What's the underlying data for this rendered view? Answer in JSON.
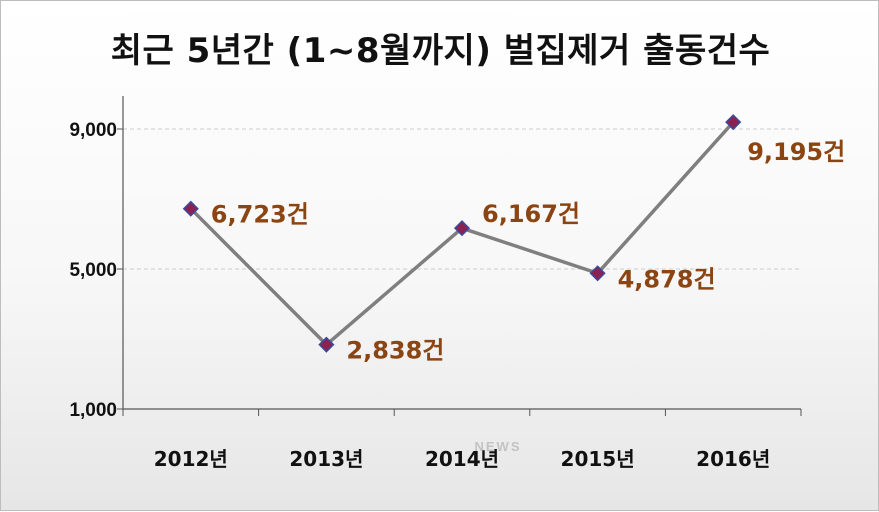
{
  "watermark": "NEWS",
  "chart_data": {
    "type": "line",
    "title": "최근 5년간 (1~8월까지) 벌집제거  출동건수",
    "xlabel": "",
    "ylabel": "",
    "categories": [
      "2012년",
      "2013년",
      "2014년",
      "2015년",
      "2016년"
    ],
    "series": [
      {
        "values": [
          6723,
          2838,
          6167,
          4878,
          9195
        ]
      }
    ],
    "data_labels": [
      "6,723건",
      "2,838건",
      "6,167건",
      "4,878건",
      "9,195건"
    ],
    "yticks": [
      1000,
      5000,
      9000
    ],
    "ytick_labels": [
      "1,000",
      "5,000",
      "9,000"
    ],
    "ylim": [
      1000,
      9000
    ],
    "grid": true,
    "legend": "none",
    "colors": {
      "line": "#7f7f7f",
      "marker": "#8b2252",
      "marker_edge": "#3a4a9a",
      "label": "#8b4513",
      "grid": "#cccccc"
    }
  }
}
